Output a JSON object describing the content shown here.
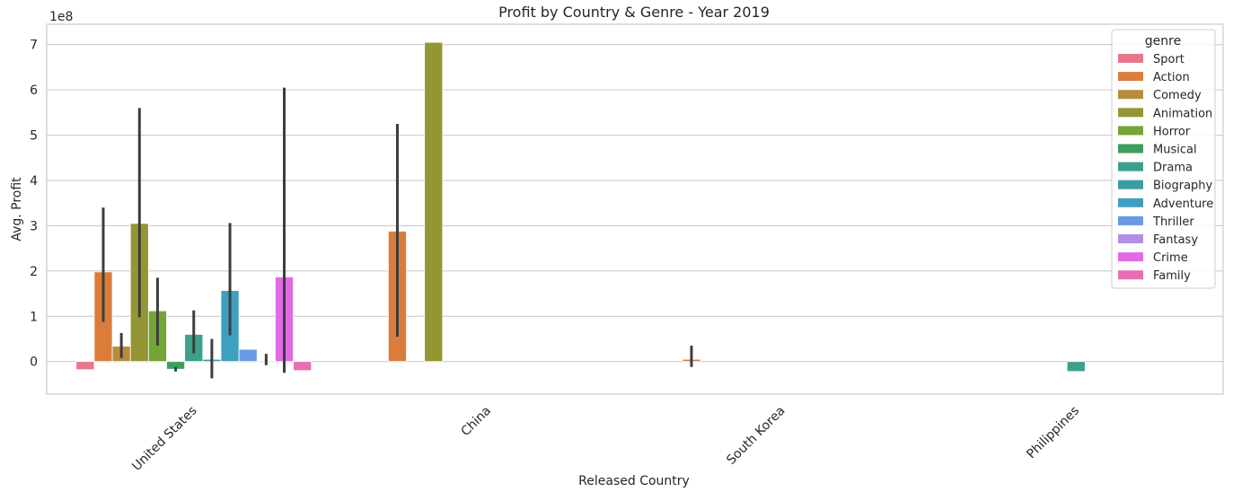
{
  "chart_data": {
    "type": "bar",
    "title": "Profit by Country & Genre - Year 2019",
    "xlabel": "Released Country",
    "ylabel": "Avg. Profit",
    "offset_label": "1e8",
    "ylim": [
      -0.72,
      7.45
    ],
    "yticks": [
      0,
      1,
      2,
      3,
      4,
      5,
      6,
      7
    ],
    "ytick_labels": [
      "0",
      "1",
      "2",
      "3",
      "4",
      "5",
      "6",
      "7"
    ],
    "grid": true,
    "legend_position": "top-right",
    "legend_title": "genre",
    "categories": [
      "United States",
      "China",
      "South Korea",
      "Philippines"
    ],
    "series": [
      {
        "name": "Sport",
        "color": "#e8768a",
        "values": [
          -0.18,
          null,
          null,
          null
        ],
        "err_low": [
          null,
          null,
          null,
          null
        ],
        "err_high": [
          null,
          null,
          null,
          null
        ]
      },
      {
        "name": "Action",
        "color": "#db7d3a",
        "values": [
          1.98,
          2.88,
          0.05,
          null
        ],
        "err_low": [
          0.88,
          0.55,
          -0.12,
          null
        ],
        "err_high": [
          3.4,
          5.25,
          0.35,
          null
        ]
      },
      {
        "name": "Comedy",
        "color": "#b78c3d",
        "values": [
          0.34,
          null,
          null,
          null
        ],
        "err_low": [
          0.08,
          null,
          null,
          null
        ],
        "err_high": [
          0.63,
          null,
          null,
          null
        ]
      },
      {
        "name": "Animation",
        "color": "#949633",
        "values": [
          3.05,
          7.05,
          null,
          null
        ],
        "err_low": [
          0.98,
          null,
          null,
          null
        ],
        "err_high": [
          5.6,
          null,
          null,
          null
        ]
      },
      {
        "name": "Horror",
        "color": "#73a636",
        "values": [
          1.12,
          null,
          null,
          null
        ],
        "err_low": [
          0.35,
          null,
          null,
          null
        ],
        "err_high": [
          1.85,
          null,
          null,
          null
        ]
      },
      {
        "name": "Musical",
        "color": "#3d9e60",
        "values": [
          -0.17,
          null,
          null,
          null
        ],
        "err_low": [
          -0.22,
          null,
          null,
          null
        ],
        "err_high": [
          -0.12,
          null,
          null,
          null
        ]
      },
      {
        "name": "Drama",
        "color": "#3ca08c",
        "values": [
          0.6,
          null,
          null,
          -0.22
        ],
        "err_low": [
          0.18,
          null,
          null,
          null
        ],
        "err_high": [
          1.13,
          null,
          null,
          null
        ]
      },
      {
        "name": "Biography",
        "color": "#3a9ea2",
        "values": [
          0.05,
          null,
          null,
          null
        ],
        "err_low": [
          -0.37,
          null,
          null,
          null
        ],
        "err_high": [
          0.5,
          null,
          null,
          null
        ]
      },
      {
        "name": "Adventure",
        "color": "#3f9fc0",
        "values": [
          1.57,
          null,
          null,
          null
        ],
        "err_low": [
          0.58,
          null,
          null,
          null
        ],
        "err_high": [
          3.06,
          null,
          null,
          null
        ]
      },
      {
        "name": "Thriller",
        "color": "#6a9ae6",
        "values": [
          0.27,
          null,
          null,
          null
        ],
        "err_low": [
          null,
          null,
          null,
          null
        ],
        "err_high": [
          null,
          null,
          null,
          null
        ]
      },
      {
        "name": "Fantasy",
        "color": "#b290e8",
        "values": [
          0.02,
          null,
          null,
          null
        ],
        "err_low": [
          -0.08,
          null,
          null,
          null
        ],
        "err_high": [
          0.17,
          null,
          null,
          null
        ]
      },
      {
        "name": "Crime",
        "color": "#e26ae6",
        "values": [
          1.87,
          null,
          null,
          null
        ],
        "err_low": [
          -0.25,
          null,
          null,
          null
        ],
        "err_high": [
          6.05,
          null,
          null,
          null
        ]
      },
      {
        "name": "Family",
        "color": "#e86fb3",
        "values": [
          -0.2,
          null,
          null,
          null
        ],
        "err_low": [
          null,
          null,
          null,
          null
        ],
        "err_high": [
          null,
          null,
          null,
          null
        ]
      }
    ]
  }
}
